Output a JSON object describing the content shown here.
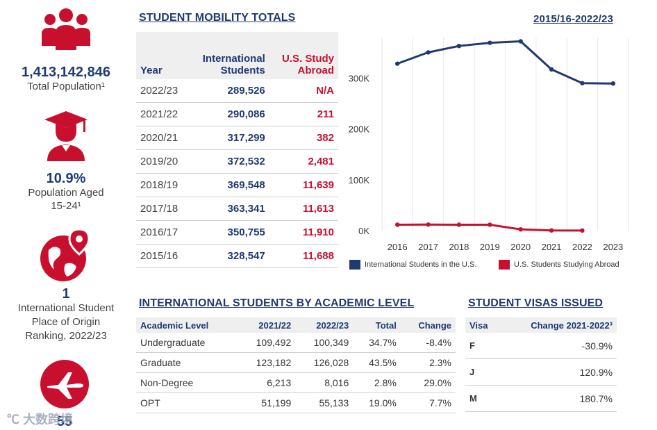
{
  "stats": {
    "population": {
      "value": "1,413,142,846",
      "label": "Total Population¹"
    },
    "aged": {
      "value": "10.9%",
      "label_line1": "Population Aged",
      "label_line2": "15-24¹"
    },
    "ranking": {
      "value": "1",
      "label_line1": "International Student",
      "label_line2": "Place of Origin",
      "label_line3": "Ranking, 2022/23"
    },
    "fourth": {
      "value": "55"
    }
  },
  "watermark": "大数跨境",
  "mobility": {
    "title": "STUDENT MOBILITY TOTALS",
    "period": "2015/16-2022/23",
    "headers": {
      "year": "Year",
      "intl_line1": "International",
      "intl_line2": "Students",
      "abroad_line1": "U.S. Study",
      "abroad_line2": "Abroad"
    },
    "rows": [
      {
        "year": "2022/23",
        "intl": "289,526",
        "abroad": "N/A"
      },
      {
        "year": "2021/22",
        "intl": "290,086",
        "abroad": "211"
      },
      {
        "year": "2020/21",
        "intl": "317,299",
        "abroad": "382"
      },
      {
        "year": "2019/20",
        "intl": "372,532",
        "abroad": "2,481"
      },
      {
        "year": "2018/19",
        "intl": "369,548",
        "abroad": "11,639"
      },
      {
        "year": "2017/18",
        "intl": "363,341",
        "abroad": "11,613"
      },
      {
        "year": "2016/17",
        "intl": "350,755",
        "abroad": "11,910"
      },
      {
        "year": "2015/16",
        "intl": "328,547",
        "abroad": "11,688"
      }
    ]
  },
  "chart_data": {
    "type": "line",
    "x": [
      "2016",
      "2017",
      "2018",
      "2019",
      "2020",
      "2021",
      "2022",
      "2023"
    ],
    "series": [
      {
        "name": "International Students in the U.S.",
        "color": "#1f3a72",
        "values": [
          328547,
          350755,
          363341,
          369548,
          372532,
          317299,
          290086,
          289526
        ]
      },
      {
        "name": "U.S. Students Studying Abroad",
        "color": "#c8102e",
        "values": [
          11688,
          11910,
          11613,
          11639,
          2481,
          382,
          211,
          null
        ]
      }
    ],
    "ytick_values": [
      0,
      100000,
      200000,
      300000
    ],
    "ytick_labels": [
      "0K",
      "100K",
      "200K",
      "300K"
    ],
    "ylim": [
      0,
      380000
    ],
    "grid": "vertical",
    "legend": "bottom"
  },
  "academic": {
    "title": "INTERNATIONAL STUDENTS BY ACADEMIC LEVEL",
    "headers": [
      "Academic Level",
      "2021/22",
      "2022/23",
      "Total",
      "Change"
    ],
    "rows": [
      [
        "Undergraduate",
        "109,492",
        "100,349",
        "34.7%",
        "-8.4%"
      ],
      [
        "Graduate",
        "123,182",
        "126,028",
        "43.5%",
        "2.3%"
      ],
      [
        "Non-Degree",
        "6,213",
        "8,016",
        "2.8%",
        "29.0%"
      ],
      [
        "OPT",
        "51,199",
        "55,133",
        "19.0%",
        "7.7%"
      ]
    ]
  },
  "visas": {
    "title": "STUDENT VISAS ISSUED",
    "headers": [
      "Visa",
      "Change 2021-2022³"
    ],
    "rows": [
      [
        "F",
        "-30.9%"
      ],
      [
        "J",
        "120.9%"
      ],
      [
        "M",
        "180.7%"
      ]
    ]
  }
}
